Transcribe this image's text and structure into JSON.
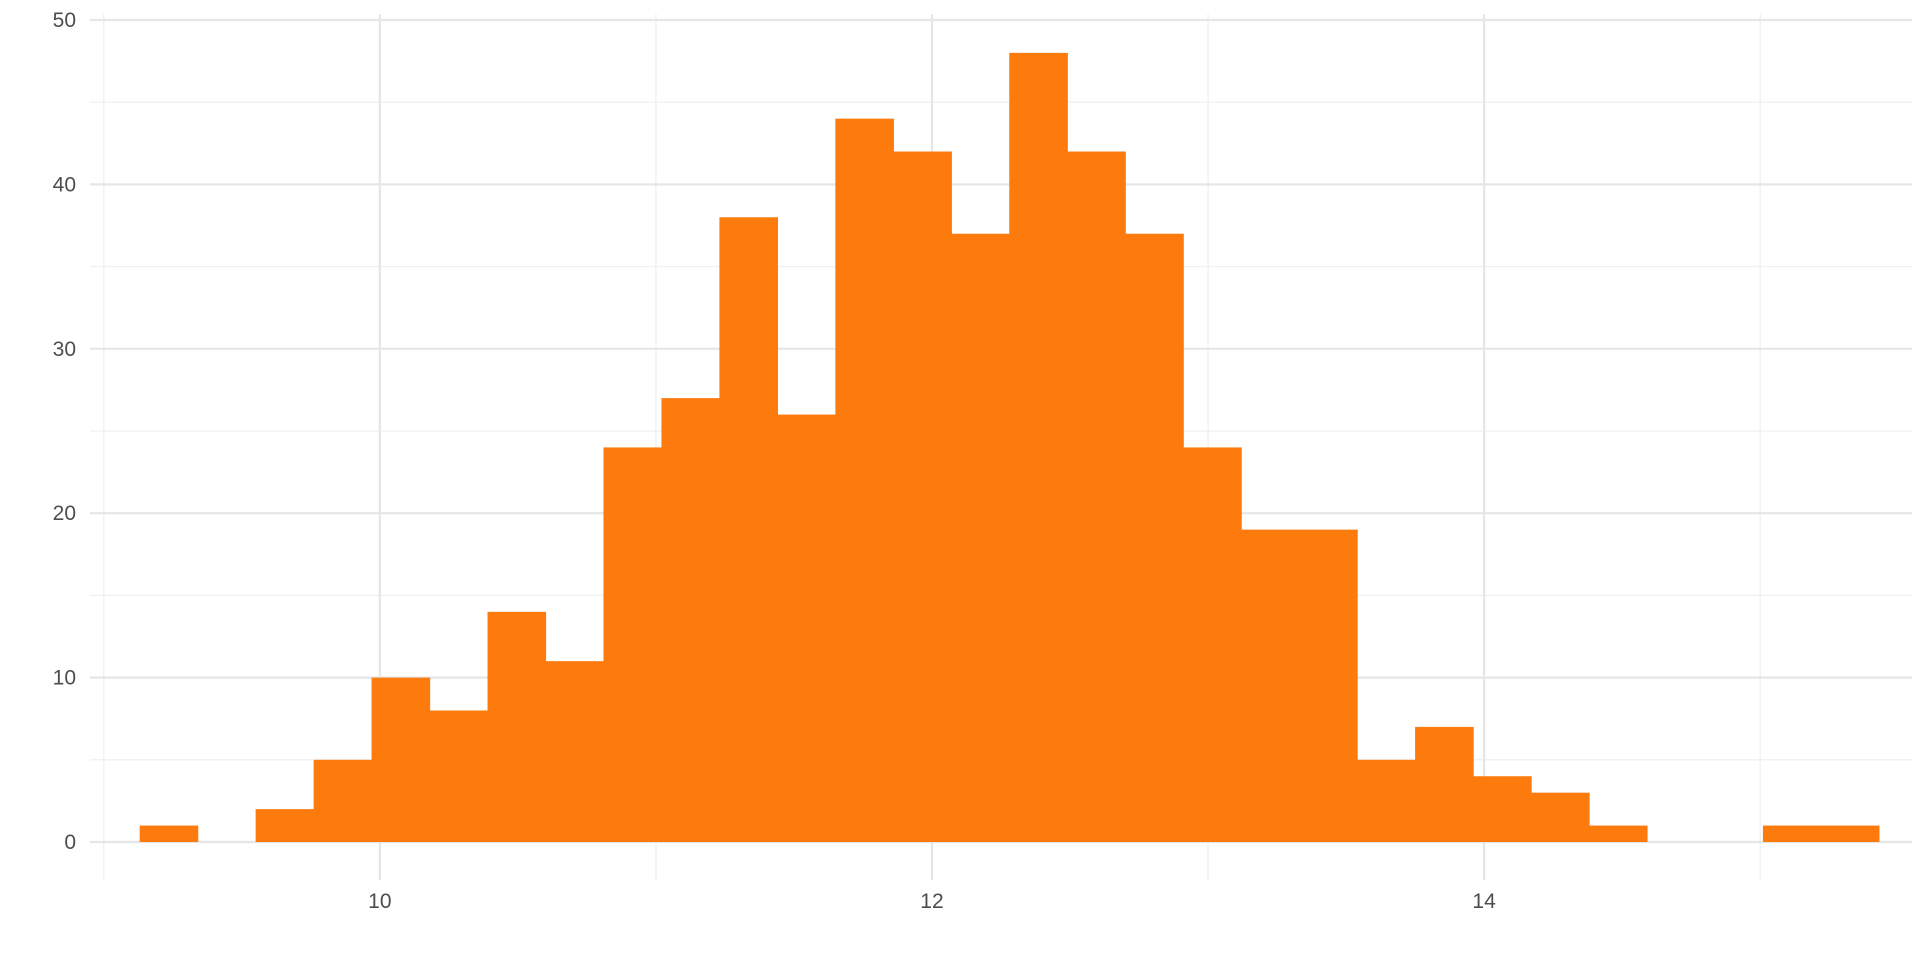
{
  "chart_data": {
    "type": "bar",
    "subtype": "histogram",
    "title": "",
    "xlabel": "",
    "ylabel": "",
    "bar_color": "#fd7a0c",
    "background": "#ffffff",
    "grid": true,
    "legend": "none",
    "xlim": [
      8.95,
      15.55
    ],
    "ylim": [
      0,
      50
    ],
    "x_ticks": [
      10,
      12,
      14
    ],
    "x_tick_labels": [
      "10",
      "12",
      "14"
    ],
    "x_minor_ticks": [
      9,
      11,
      13,
      15
    ],
    "y_ticks": [
      0,
      10,
      20,
      30,
      40,
      50
    ],
    "y_tick_labels": [
      "0",
      "10",
      "20",
      "30",
      "40",
      "50"
    ],
    "y_minor_ticks": [
      5,
      15,
      25,
      35,
      45
    ],
    "bin_width": 0.21,
    "bin_start": 9.13,
    "counts": [
      1,
      0,
      2,
      5,
      10,
      8,
      14,
      11,
      24,
      27,
      38,
      26,
      44,
      42,
      37,
      48,
      42,
      37,
      24,
      19,
      19,
      5,
      7,
      4,
      3,
      1,
      0,
      0,
      1,
      1
    ]
  }
}
